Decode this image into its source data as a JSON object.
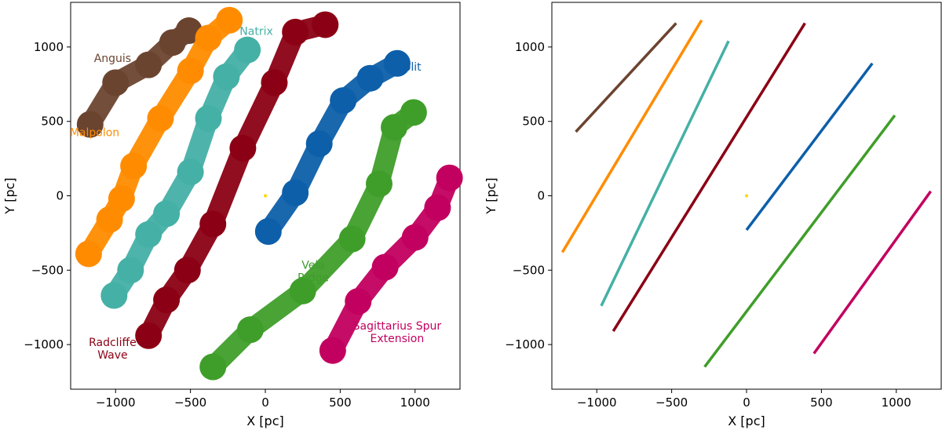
{
  "chart_data": [
    {
      "type": "scatter",
      "xlabel": "X [pc]",
      "ylabel": "Y [pc]",
      "xlim": [
        -1300,
        1300
      ],
      "ylim": [
        -1300,
        1300
      ],
      "xticks": [
        -1000,
        -500,
        0,
        500,
        1000
      ],
      "yticks": [
        -1000,
        -500,
        0,
        500,
        1000
      ],
      "xtick_labels": [
        "−1000",
        "−500",
        "0",
        "500",
        "1000"
      ],
      "ytick_labels": [
        "−1000",
        "−500",
        "0",
        "500",
        "1000"
      ],
      "sun": {
        "x": 0,
        "y": 0,
        "color": "#ffd700"
      },
      "series": [
        {
          "name": "Anguis",
          "color": "#6b4430",
          "label_at": [
            -1020,
            900
          ],
          "points": [
            [
              -1170,
              480
            ],
            [
              -1000,
              760
            ],
            [
              -780,
              880
            ],
            [
              -620,
              1030
            ],
            [
              -510,
              1110
            ]
          ]
        },
        {
          "name": "Malpolon",
          "color": "#ff8c00",
          "label_at": [
            -1140,
            400
          ],
          "points": [
            [
              -1180,
              -390
            ],
            [
              -1040,
              -160
            ],
            [
              -960,
              -20
            ],
            [
              -880,
              200
            ],
            [
              -700,
              520
            ],
            [
              -500,
              840
            ],
            [
              -380,
              1060
            ],
            [
              -240,
              1180
            ]
          ]
        },
        {
          "name": "Natrix",
          "color": "#45b0a6",
          "label_at": [
            -60,
            1080
          ],
          "points": [
            [
              -1010,
              -670
            ],
            [
              -900,
              -500
            ],
            [
              -780,
              -260
            ],
            [
              -660,
              -120
            ],
            [
              -500,
              160
            ],
            [
              -380,
              520
            ],
            [
              -260,
              800
            ],
            [
              -120,
              980
            ]
          ]
        },
        {
          "name": "Radcliffe\nWave",
          "color": "#8b0014",
          "label_at": [
            -1020,
            -1010
          ],
          "points": [
            [
              -780,
              -940
            ],
            [
              -660,
              -700
            ],
            [
              -520,
              -500
            ],
            [
              -350,
              -190
            ],
            [
              -150,
              320
            ],
            [
              60,
              760
            ],
            [
              200,
              1100
            ],
            [
              400,
              1150
            ]
          ]
        },
        {
          "name": "Split",
          "color": "#0d5fa9",
          "label_at": [
            960,
            840
          ],
          "points": [
            [
              20,
              -240
            ],
            [
              200,
              20
            ],
            [
              360,
              350
            ],
            [
              520,
              640
            ],
            [
              700,
              790
            ],
            [
              880,
              890
            ]
          ]
        },
        {
          "name": "Vela\nRidge",
          "color": "#3f9e2a",
          "label_at": [
            320,
            -490
          ],
          "points": [
            [
              -350,
              -1150
            ],
            [
              -100,
              -900
            ],
            [
              250,
              -640
            ],
            [
              580,
              -290
            ],
            [
              760,
              80
            ],
            [
              860,
              460
            ],
            [
              990,
              560
            ]
          ]
        },
        {
          "name": "Sagittarius Spur\nExtension",
          "color": "#c2005f",
          "label_at": [
            880,
            -900
          ],
          "points": [
            [
              450,
              -1040
            ],
            [
              620,
              -710
            ],
            [
              800,
              -480
            ],
            [
              1000,
              -280
            ],
            [
              1150,
              -80
            ],
            [
              1230,
              120
            ]
          ]
        }
      ]
    },
    {
      "type": "line",
      "xlabel": "X [pc]",
      "ylabel": "Y [pc]",
      "xlim": [
        -1300,
        1300
      ],
      "ylim": [
        -1300,
        1300
      ],
      "xticks": [
        -1000,
        -500,
        0,
        500,
        1000
      ],
      "yticks": [
        -1000,
        -500,
        0,
        500,
        1000
      ],
      "xtick_labels": [
        "−1000",
        "−500",
        "0",
        "500",
        "1000"
      ],
      "ytick_labels": [
        "−1000",
        "−500",
        "0",
        "500",
        "1000"
      ],
      "sun": {
        "x": 0,
        "y": 0,
        "color": "#ffd700"
      },
      "series": [
        {
          "color": "#6b4430",
          "x": [
            -1140,
            -470
          ],
          "y": [
            430,
            1160
          ]
        },
        {
          "color": "#ff8c00",
          "x": [
            -1230,
            -300
          ],
          "y": [
            -380,
            1180
          ]
        },
        {
          "color": "#45b0a6",
          "x": [
            -970,
            -120
          ],
          "y": [
            -740,
            1040
          ]
        },
        {
          "color": "#8b0014",
          "x": [
            -890,
            390
          ],
          "y": [
            -910,
            1160
          ]
        },
        {
          "color": "#0d5fa9",
          "x": [
            0,
            840
          ],
          "y": [
            -230,
            890
          ]
        },
        {
          "color": "#3f9e2a",
          "x": [
            -280,
            990
          ],
          "y": [
            -1150,
            540
          ]
        },
        {
          "color": "#c2005f",
          "x": [
            450,
            1230
          ],
          "y": [
            -1060,
            30
          ]
        }
      ]
    }
  ]
}
